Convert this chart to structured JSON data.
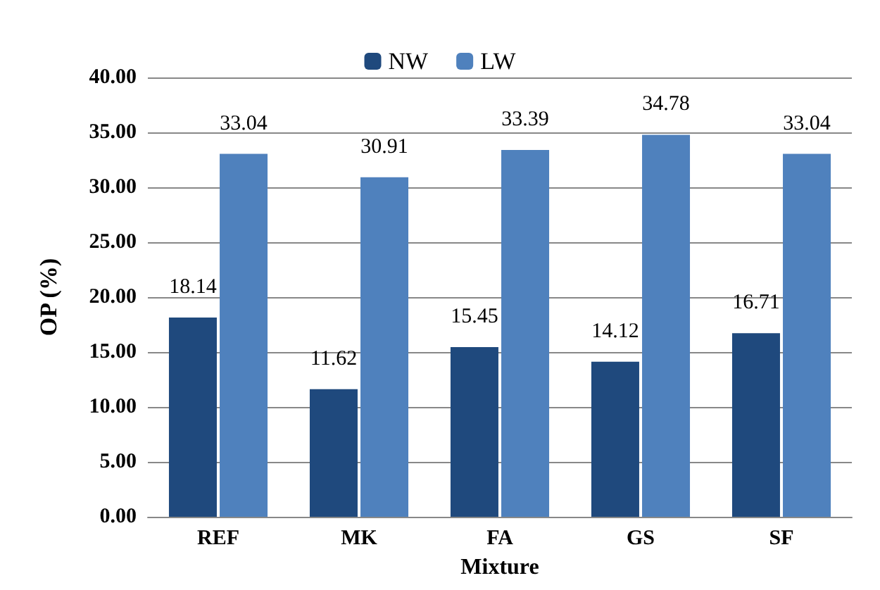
{
  "chart_data": {
    "type": "bar",
    "xlabel": "Mixture",
    "ylabel": "OP (%)",
    "categories": [
      "REF",
      "MK",
      "FA",
      "GS",
      "SF"
    ],
    "series": [
      {
        "name": "NW",
        "color": "#1f497d",
        "values": [
          18.14,
          11.62,
          15.45,
          14.12,
          16.71
        ]
      },
      {
        "name": "LW",
        "color": "#4f81bd",
        "values": [
          33.04,
          30.91,
          33.39,
          34.78,
          33.04
        ]
      }
    ],
    "ylim": [
      0,
      40
    ],
    "yticks": [
      {
        "value": 0,
        "label": "0.00"
      },
      {
        "value": 5,
        "label": "5.00"
      },
      {
        "value": 10,
        "label": "10.00"
      },
      {
        "value": 15,
        "label": "15.00"
      },
      {
        "value": 20,
        "label": "20.00"
      },
      {
        "value": 25,
        "label": "25.00"
      },
      {
        "value": 30,
        "label": "30.00"
      },
      {
        "value": 35,
        "label": "35.00"
      },
      {
        "value": 40,
        "label": "40.00"
      }
    ],
    "grid": "y",
    "legend": "top",
    "data_labels": true
  }
}
